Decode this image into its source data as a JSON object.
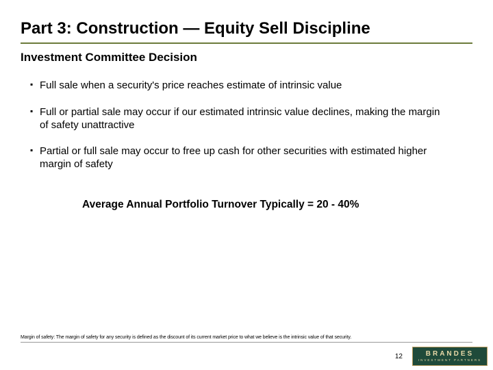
{
  "title": "Part 3: Construction — Equity Sell Discipline",
  "subtitle": "Investment Committee Decision",
  "bullets": [
    "Full sale when a security's price reaches estimate of intrinsic value",
    "Full or partial sale may occur if our estimated intrinsic value declines, making the margin of safety unattractive",
    "Partial or full sale may occur to free up cash for other securities with estimated higher margin of safety"
  ],
  "turnover": "Average Annual Portfolio Turnover Typically = 20 - 40%",
  "footnote": "Margin of safety: The margin of safety for any security is defined as the discount of its current market price to what we believe is the intrinsic value of that security.",
  "page_number": "12",
  "logo": {
    "main": "BRANDES",
    "sub": "INVESTMENT PARTNERS"
  },
  "colors": {
    "title_underline": "#6b7a3a",
    "logo_bg": "#1f4a3a",
    "logo_border": "#b89a5a",
    "logo_text": "#e9d9a8"
  }
}
